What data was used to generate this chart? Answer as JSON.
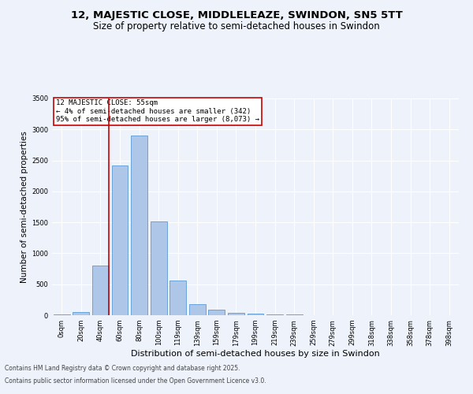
{
  "title1": "12, MAJESTIC CLOSE, MIDDLELEAZE, SWINDON, SN5 5TT",
  "title2": "Size of property relative to semi-detached houses in Swindon",
  "xlabel": "Distribution of semi-detached houses by size in Swindon",
  "ylabel": "Number of semi-detached properties",
  "categories": [
    "0sqm",
    "20sqm",
    "40sqm",
    "60sqm",
    "80sqm",
    "100sqm",
    "119sqm",
    "139sqm",
    "159sqm",
    "179sqm",
    "199sqm",
    "219sqm",
    "239sqm",
    "259sqm",
    "279sqm",
    "299sqm",
    "318sqm",
    "338sqm",
    "358sqm",
    "378sqm",
    "398sqm"
  ],
  "bar_heights": [
    10,
    50,
    800,
    2420,
    2900,
    1510,
    560,
    175,
    90,
    35,
    30,
    15,
    10,
    5,
    3,
    2,
    1,
    1,
    0,
    0,
    0
  ],
  "bar_color": "#aec6e8",
  "bar_edge_color": "#5b9bd5",
  "ylim": [
    0,
    3500
  ],
  "yticks": [
    0,
    500,
    1000,
    1500,
    2000,
    2500,
    3000,
    3500
  ],
  "property_line_label": "12 MAJESTIC CLOSE: 55sqm",
  "annotation_smaller": "← 4% of semi-detached houses are smaller (342)",
  "annotation_larger": "95% of semi-detached houses are larger (8,073) →",
  "box_color": "#cc0000",
  "footer1": "Contains HM Land Registry data © Crown copyright and database right 2025.",
  "footer2": "Contains public sector information licensed under the Open Government Licence v3.0.",
  "bg_color": "#eef2fa",
  "grid_color": "#ffffff",
  "title1_fontsize": 9.5,
  "title2_fontsize": 8.5,
  "xlabel_fontsize": 8,
  "ylabel_fontsize": 7.5,
  "tick_fontsize": 6,
  "annotation_fontsize": 6.5,
  "footer_fontsize": 5.5
}
